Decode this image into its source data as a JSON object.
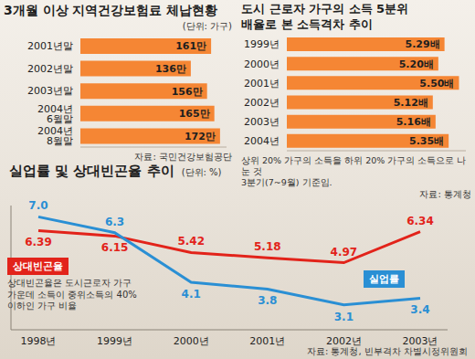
{
  "chart_data": [
    {
      "type": "bar",
      "title": "3개월 이상 지역건강보험료 체납현황",
      "subtitle": "(단위: 가구)",
      "source": "자료: 국민건강보험공단",
      "categories": [
        "2001년말",
        "2002년말",
        "2003년말",
        "2004년 6월말",
        "2004년 8월말"
      ],
      "values": [
        161,
        136,
        156,
        165,
        172
      ],
      "value_labels": [
        "161만",
        "136만",
        "156만",
        "165만",
        "172만"
      ],
      "color": "#f58634",
      "orientation": "horizontal",
      "data_labels": true,
      "tick_labels": "y",
      "xlim": [
        0,
        180
      ]
    },
    {
      "type": "bar",
      "title": "도시 근로자 가구의 소득 5분위\n배율로 본 소득격차 추이",
      "note": "상위 20% 가구의 소득을 하위 20% 가구의 소득으로 나눈 것\n3분기(7~9월) 기준임.",
      "source": "자료: 통계청",
      "categories": [
        "1999년",
        "2000년",
        "2001년",
        "2002년",
        "2003년",
        "2004년"
      ],
      "values": [
        5.29,
        5.2,
        5.5,
        5.12,
        5.16,
        5.35
      ],
      "value_labels": [
        "5.29배",
        "5.20배",
        "5.50배",
        "5.12배",
        "5.16배",
        "5.35배"
      ],
      "color": "#f58634",
      "orientation": "horizontal",
      "data_labels": true,
      "tick_labels": "y",
      "xlim": [
        3,
        5.6
      ]
    },
    {
      "type": "line",
      "title": "실업률 및 상대빈곤율 추이",
      "subtitle": "(단위: %)",
      "note": "상대빈곤율은 도시근로자 가구\n가운데 소득이 중위소득의 40%\n이하인 가구 비율",
      "source": "자료: 통계청, 빈부격차 차별시정위원회",
      "categories": [
        "1998년",
        "1999년",
        "2000년",
        "2001년",
        "2002년",
        "2003년"
      ],
      "series": [
        {
          "name": "상대빈곤율",
          "color": "#e2231a",
          "values": [
            6.39,
            6.15,
            5.42,
            5.18,
            4.97,
            6.34
          ]
        },
        {
          "name": "실업률",
          "color": "#2a8fd4",
          "values": [
            7.0,
            6.3,
            4.1,
            3.8,
            3.1,
            3.4
          ],
          "value_labels": [
            "7.0",
            "6.3",
            "4.1",
            "3.8",
            "3.1",
            "3.4"
          ]
        }
      ],
      "data_labels": true,
      "tick_labels": "x",
      "ylim": [
        2,
        7.5
      ]
    }
  ]
}
